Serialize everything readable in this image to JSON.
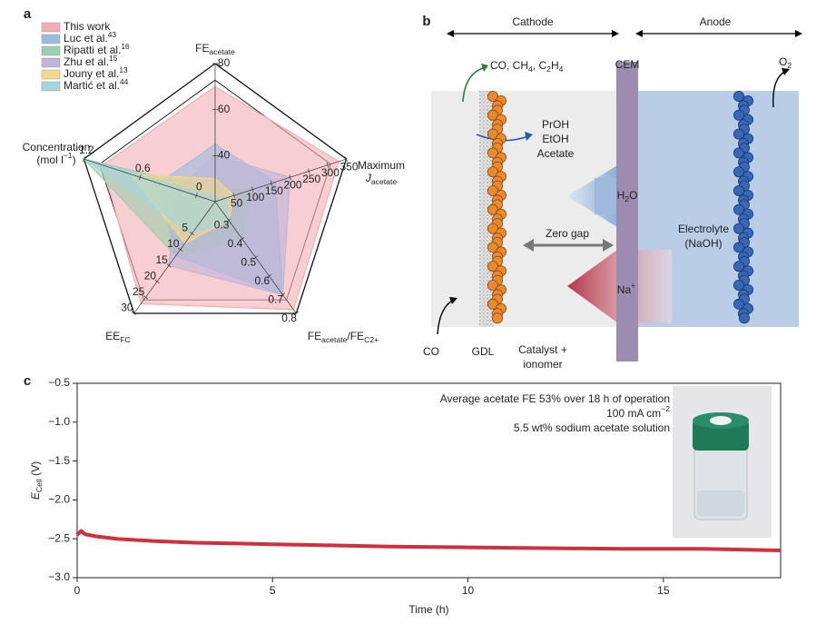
{
  "panel_labels": [
    "a",
    "b",
    "c"
  ],
  "chart_data": [
    {
      "type": "radar",
      "axes": [
        {
          "label": [
            [
              {
                "text": "FE"
              },
              {
                "sub": "acetate"
              }
            ]
          ],
          "lim": [
            20,
            80
          ],
          "ticks": [
            40,
            60,
            80
          ]
        },
        {
          "label": [
            [
              {
                "text": "Maximum"
              }
            ],
            [
              {
                "text": "J",
                "italic": true
              },
              {
                "sub": "acetate"
              }
            ]
          ],
          "lim": [
            0,
            350
          ],
          "ticks": [
            50,
            100,
            150,
            200,
            250,
            300,
            350
          ]
        },
        {
          "label": [
            [
              {
                "text": "FE"
              },
              {
                "sub": "acetate"
              },
              {
                "text": "/FE"
              },
              {
                "sub": "C2+"
              }
            ]
          ],
          "lim": [
            0.2,
            0.8
          ],
          "ticks": [
            0.3,
            0.4,
            0.5,
            0.6,
            0.7,
            0.8
          ]
        },
        {
          "label": [
            [
              {
                "text": "EE"
              },
              {
                "sub": "FC"
              }
            ]
          ],
          "lim": [
            -5,
            30
          ],
          "ticks": [
            5,
            10,
            15,
            20,
            25,
            30
          ]
        },
        {
          "label": [
            [
              {
                "text": "Concentration"
              }
            ],
            [
              {
                "text": "(mol l"
              },
              {
                "sup": "−1"
              },
              {
                "text": ")"
              }
            ]
          ],
          "lim": [
            -0.2,
            1.2
          ],
          "ticks": [
            0,
            0.6,
            1.2
          ]
        }
      ],
      "series": [
        {
          "name": "This work",
          "color": "#f2aeb4",
          "values": [
            70,
            330,
            0.78,
            27,
            1.0
          ]
        },
        {
          "name": "Luc et al.",
          "ref": "43",
          "color": "#9dbbe0",
          "values": [
            45,
            160,
            0.7,
            12,
            0.4
          ]
        },
        {
          "name": "Ripatti et al.",
          "ref": "16",
          "color": "#9fcfae",
          "values": [
            25,
            100,
            0.4,
            12,
            1.2
          ]
        },
        {
          "name": "Zhu et al.",
          "ref": "15",
          "color": "#bfb4d8",
          "values": [
            40,
            200,
            0.7,
            15,
            0.2
          ]
        },
        {
          "name": "Jouny et al.",
          "ref": "13",
          "color": "#f3d98c",
          "values": [
            30,
            50,
            0.3,
            8,
            0.7
          ]
        },
        {
          "name": "Martić et al.",
          "ref": "44",
          "color": "#a2d8dc",
          "values": [
            22,
            30,
            0.3,
            5,
            1.2
          ]
        }
      ]
    },
    {
      "type": "line",
      "xlabel": "Time (h)",
      "ylabel": [
        {
          "text": "E",
          "italic": true
        },
        {
          "sub": "Cell"
        },
        {
          "text": " (V)"
        }
      ],
      "x": [
        0,
        0.1,
        0.2,
        0.5,
        1,
        2,
        3,
        4,
        5,
        6,
        8,
        10,
        12,
        14,
        16,
        18
      ],
      "values": [
        -2.45,
        -2.4,
        -2.44,
        -2.47,
        -2.5,
        -2.53,
        -2.55,
        -2.56,
        -2.57,
        -2.58,
        -2.6,
        -2.61,
        -2.62,
        -2.63,
        -2.63,
        -2.65
      ],
      "color": "#d12f3c",
      "xlim": [
        0,
        18
      ],
      "xticks": [
        0,
        5,
        10,
        15
      ],
      "ylim": [
        -3.0,
        -0.5
      ],
      "yticks": [
        {
          "value": -0.5,
          "label": "−0.5"
        },
        {
          "value": -1.0,
          "label": "−1.0"
        },
        {
          "value": -1.5,
          "label": "−1.5"
        },
        {
          "value": -2.0,
          "label": "−2.0"
        },
        {
          "value": -2.5,
          "label": "−2.5"
        },
        {
          "value": -3.0,
          "label": "−3.0"
        }
      ],
      "annotations": [
        "Average acetate FE 53% over 18 h of operation",
        [
          {
            "text": "100 mA cm"
          },
          {
            "sup": "−2"
          }
        ],
        "5.5 wt% sodium acetate solution"
      ]
    }
  ],
  "diagram": {
    "cathode": "Cathode",
    "anode": "Anode",
    "cem": "CEM",
    "gases": [
      {
        "text": "CO, CH"
      },
      {
        "sub": "4"
      },
      {
        "text": ", C"
      },
      {
        "sub": "2"
      },
      {
        "text": "H"
      },
      {
        "sub": "4"
      }
    ],
    "oxygen": [
      {
        "text": "O"
      },
      {
        "sub": "2"
      }
    ],
    "liquids": [
      "PrOH",
      "EtOH",
      "Acetate"
    ],
    "water": [
      {
        "text": "H"
      },
      {
        "sub": "2"
      },
      {
        "text": "O"
      }
    ],
    "zero_gap": "Zero gap",
    "electrolyte": [
      "Electrolyte",
      "(NaOH)"
    ],
    "sodium": [
      {
        "text": "Na"
      },
      {
        "sup": "+"
      }
    ],
    "co": "CO",
    "gdl": "GDL",
    "catalyst": [
      "Catalyst +",
      "ionomer"
    ]
  }
}
